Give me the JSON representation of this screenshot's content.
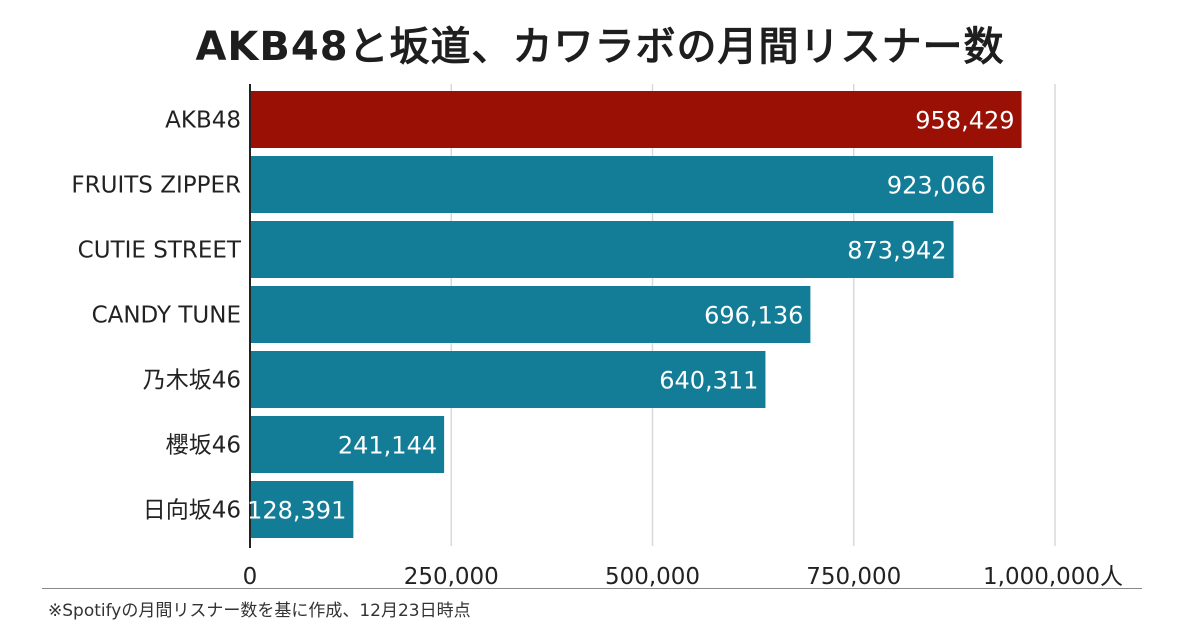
{
  "chart_data": {
    "type": "bar",
    "orientation": "horizontal",
    "title": "AKB48と坂道、カワラボの月間リスナー数",
    "categories": [
      "AKB48",
      "FRUITS ZIPPER",
      "CUTIE STREET",
      "CANDY TUNE",
      "乃木坂46",
      "櫻坂46",
      "日向坂46"
    ],
    "values": [
      958429,
      923066,
      873942,
      696136,
      640311,
      241144,
      128391
    ],
    "value_labels": [
      "958,429",
      "923,066",
      "873,942",
      "696,136",
      "640,311",
      "241,144",
      "128,391"
    ],
    "highlight_index": 0,
    "colors": {
      "highlight": "#9b1005",
      "default": "#137d98",
      "grid": "#d9d9d9",
      "axis": "#222222"
    },
    "xlim": [
      0,
      1000000
    ],
    "xticks": [
      0,
      250000,
      500000,
      750000,
      1000000
    ],
    "xtick_labels": [
      "0",
      "250,000",
      "500,000",
      "750,000",
      "1,000,000人"
    ],
    "grid": true,
    "xlabel": "",
    "ylabel": ""
  },
  "footnote": "※Spotifyの月間リスナー数を基に作成、12月23日時点"
}
